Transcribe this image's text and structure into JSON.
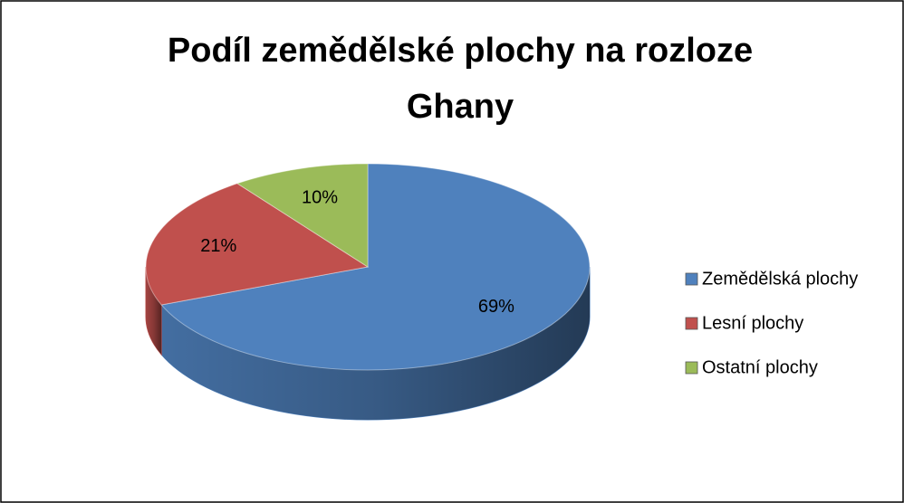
{
  "chart_data": {
    "type": "pie3d",
    "title": "Podíl zemědělské plochy na rozloze Ghany",
    "categories": [
      "Zemědělská plochy",
      "Lesní plochy",
      "Ostatní plochy"
    ],
    "values": [
      69,
      21,
      10
    ],
    "value_labels": [
      "69%",
      "21%",
      "10%"
    ],
    "colors": [
      "#4f81bd",
      "#c0504d",
      "#9bbb59"
    ],
    "legend": "right"
  }
}
